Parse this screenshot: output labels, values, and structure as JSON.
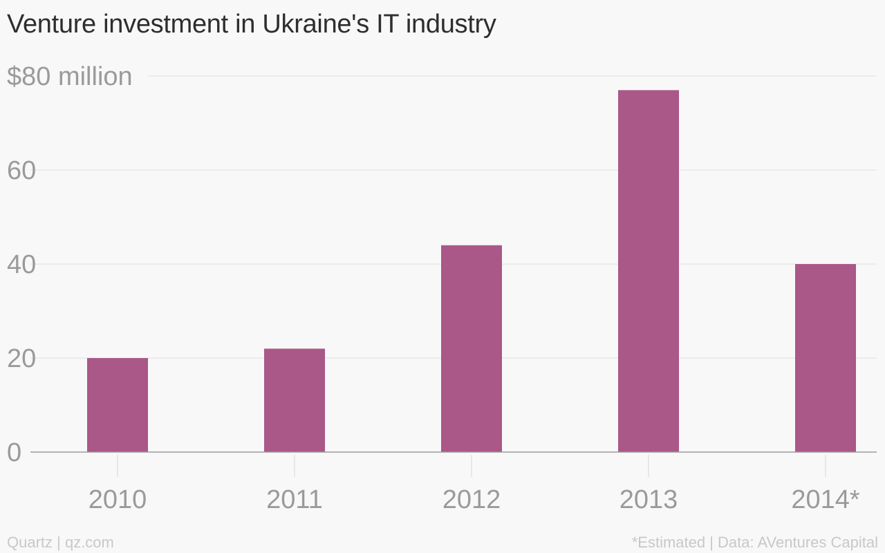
{
  "title": "Venture investment in Ukraine's IT industry",
  "colors": {
    "bar": "#a95887",
    "grid": "#e4e4e4",
    "axis": "#9b9b9b",
    "tick_text": "#9a9a9a",
    "background": "#f8f8f8"
  },
  "chart_data": {
    "type": "bar",
    "categories": [
      "2010",
      "2011",
      "2012",
      "2013",
      "2014*"
    ],
    "values": [
      20,
      22,
      44,
      77,
      40
    ],
    "title": "Venture investment in Ukraine's IT industry",
    "xlabel": "",
    "ylabel": "",
    "ylim": [
      0,
      80
    ],
    "yticks": [
      0,
      20,
      40,
      60,
      80
    ],
    "ytick_labels": [
      "0",
      "20",
      "40",
      "60",
      "$80 million"
    ],
    "grid": true,
    "legend": "none"
  },
  "footer": {
    "source_left": "Quartz | qz.com",
    "note_right": "*Estimated | Data: AVentures Capital"
  }
}
